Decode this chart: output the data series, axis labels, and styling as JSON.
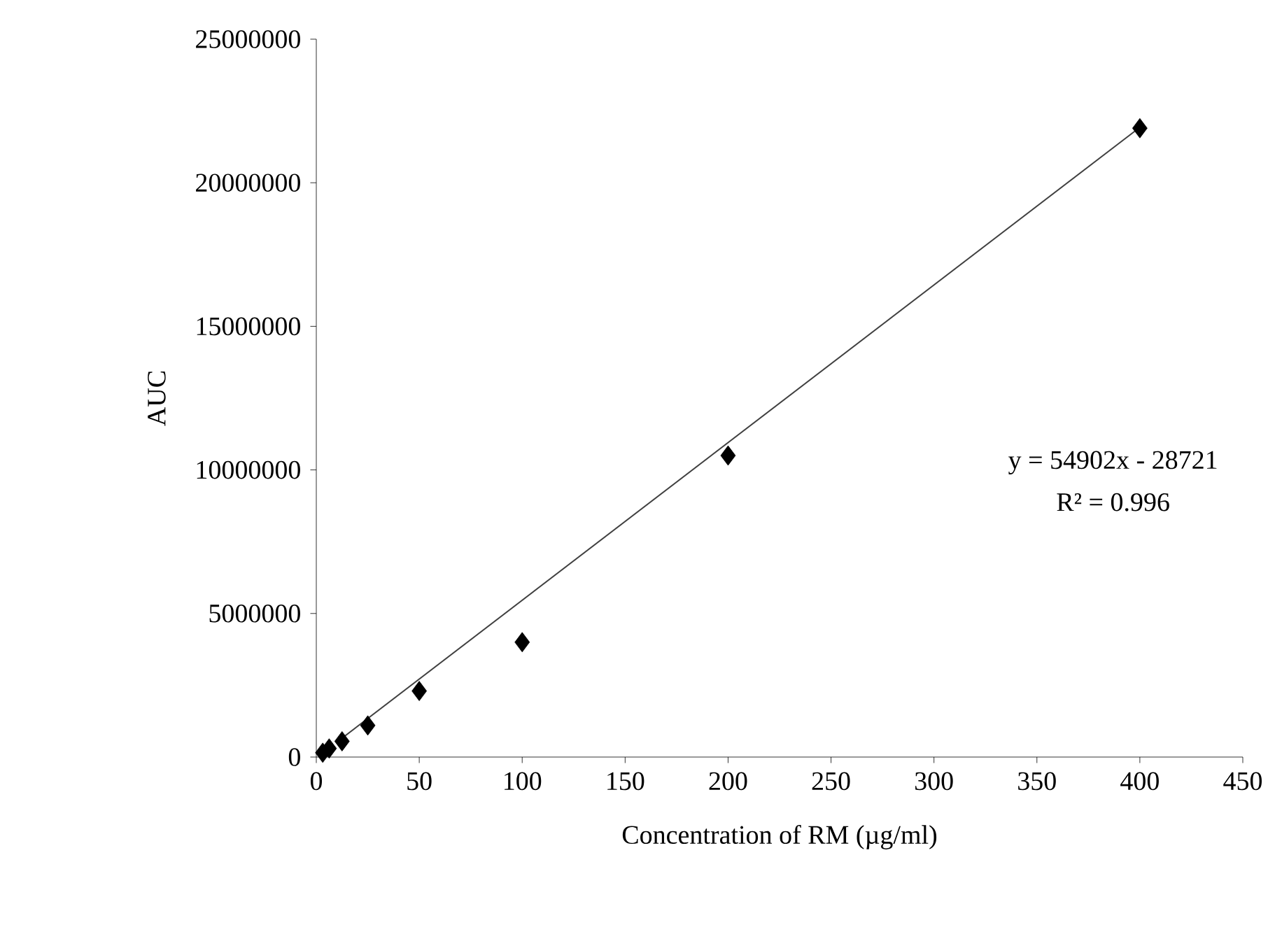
{
  "chart_data": {
    "type": "scatter",
    "xlabel": "Concentration of RM (µg/ml)",
    "ylabel": "AUC",
    "series": [
      {
        "type": "scatter",
        "color": "#000000",
        "marker": "diamond",
        "x": [
          3.125,
          6.25,
          12.5,
          25,
          50,
          100,
          200,
          400
        ],
        "values": [
          150000,
          300000,
          550000,
          1100000,
          2300000,
          4000000,
          10500000,
          21900000
        ]
      },
      {
        "type": "line",
        "color": "#404040",
        "marker": "none",
        "x": [
          10,
          400
        ],
        "values": [
          520000,
          21930000
        ]
      }
    ],
    "annotations": [
      "y = 54902x - 28721",
      "R² = 0.996"
    ],
    "xlim": [
      0,
      450
    ],
    "xticks": [
      0,
      50,
      100,
      150,
      200,
      250,
      300,
      350,
      400,
      450
    ],
    "ylim": [
      0,
      25000000
    ],
    "yticks": [
      0,
      5000000,
      10000000,
      15000000,
      20000000,
      25000000
    ],
    "grid": false
  }
}
